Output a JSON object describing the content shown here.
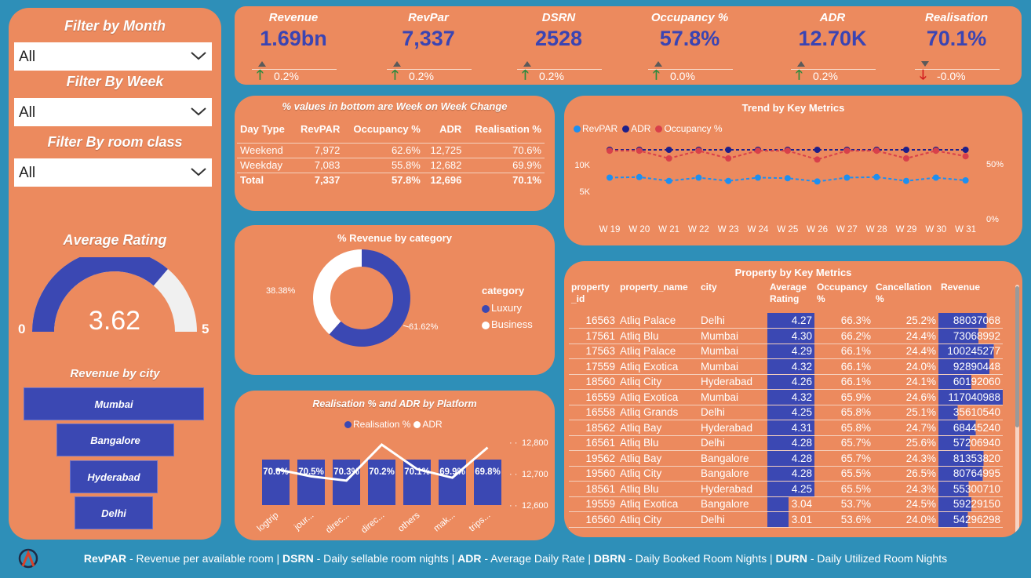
{
  "filters": {
    "month_title": "Filter by Month",
    "month_value": "All",
    "week_title": "Filter By Week",
    "week_value": "All",
    "room_title": "Filter By room class",
    "room_value": "All"
  },
  "rating": {
    "title": "Average Rating",
    "value": "3.62",
    "min": "0",
    "max": "5",
    "fraction": 0.724
  },
  "city": {
    "title": "Revenue by city",
    "items": [
      "Mumbai",
      "Bangalore",
      "Hyderabad",
      "Delhi"
    ]
  },
  "kpis": [
    {
      "title": "Revenue",
      "value": "1.69bn",
      "change": "0.2%",
      "dir": "up"
    },
    {
      "title": "RevPar",
      "value": "7,337",
      "change": "0.2%",
      "dir": "up"
    },
    {
      "title": "DSRN",
      "value": "2528",
      "change": "0.2%",
      "dir": "up"
    },
    {
      "title": "Occupancy %",
      "value": "57.8%",
      "change": "0.0%",
      "dir": "up"
    },
    {
      "title": "ADR",
      "value": "12.70K",
      "change": "0.2%",
      "dir": "up"
    },
    {
      "title": "Realisation",
      "value": "70.1%",
      "change": "-0.0%",
      "dir": "down"
    }
  ],
  "colors": {
    "panel": "#ec8a5e",
    "background": "#2e8fb8",
    "accent": "#3a44b3",
    "up": "#2e8b3e",
    "down": "#d32020"
  },
  "week_table": {
    "title": "% values in bottom are Week on Week Change",
    "headers": [
      "Day Type",
      "RevPAR",
      "Occupancy %",
      "ADR",
      "Realisation %"
    ],
    "rows": [
      [
        "Weekend",
        "7,972",
        "62.6%",
        "12,725",
        "70.6%"
      ],
      [
        "Weekday",
        "7,083",
        "55.8%",
        "12,682",
        "69.9%"
      ],
      [
        "Total",
        "7,337",
        "57.8%",
        "12,696",
        "70.1%"
      ]
    ]
  },
  "chart_data": [
    {
      "type": "pie",
      "title": "% Revenue by category",
      "legend_title": "category",
      "categories": [
        "Luxury",
        "Business"
      ],
      "values": [
        61.62,
        38.38
      ],
      "labels": [
        "61.62%",
        "38.38%"
      ],
      "colors": [
        "#3b48b3",
        "#ffffff"
      ]
    },
    {
      "type": "line",
      "title": "Trend by Key Metrics",
      "categories": [
        "W 19",
        "W 20",
        "W 21",
        "W 22",
        "W 23",
        "W 24",
        "W 25",
        "W 26",
        "W 27",
        "W 28",
        "W 29",
        "W 30",
        "W 31"
      ],
      "series": [
        {
          "name": "RevPAR",
          "axis": "left",
          "color": "#1e8ff0",
          "values": [
            7500,
            7600,
            6900,
            7500,
            6900,
            7500,
            7400,
            6800,
            7500,
            7600,
            6900,
            7500,
            7000
          ]
        },
        {
          "name": "ADR",
          "axis": "left",
          "color": "#1d1f8a",
          "values": [
            12700,
            12700,
            12680,
            12700,
            12680,
            12700,
            12700,
            12680,
            12700,
            12700,
            12680,
            12700,
            12700
          ]
        },
        {
          "name": "Occupancy %",
          "axis": "right",
          "color": "#d8404a",
          "values": [
            62,
            62,
            55,
            62,
            55,
            62,
            62,
            54,
            62,
            62,
            55,
            62,
            57
          ]
        }
      ],
      "y_ticks_left": [
        "10K",
        "5K"
      ],
      "y_ticks_right": [
        "50%",
        "0%"
      ]
    },
    {
      "type": "bar",
      "title": "Realisation % and ADR by Platform",
      "categories": [
        "logtrip",
        "jour...",
        "direc...",
        "direc...",
        "others",
        "mak...",
        "trips..."
      ],
      "series": [
        {
          "name": "Realisation %",
          "type": "bar",
          "color": "#3b48b3",
          "values": [
            70.6,
            70.5,
            70.3,
            70.2,
            70.1,
            69.9,
            69.8
          ],
          "labels": [
            "70.6%",
            "70.5%",
            "70.3%",
            "70.2%",
            "70.1%",
            "69.9%",
            "69.8%"
          ]
        },
        {
          "name": "ADR",
          "type": "line",
          "color": "#ffffff",
          "values": [
            12705,
            12680,
            12665,
            12790,
            12705,
            12675,
            12780
          ]
        }
      ],
      "y_ticks_right": [
        "12,800",
        "12,700",
        "12,600"
      ],
      "ylim_right": [
        12580,
        12820
      ]
    }
  ],
  "property_table": {
    "title": "Property by Key Metrics",
    "headers": [
      "property _id",
      "property_name",
      "city",
      "Average Rating",
      "Occupancy %",
      "Cancellation %",
      "Revenue"
    ],
    "rows": [
      [
        "16563",
        "Atliq Palace",
        "Delhi",
        "4.27",
        "66.3%",
        "25.2%",
        "88037068"
      ],
      [
        "17561",
        "Atliq Blu",
        "Mumbai",
        "4.30",
        "66.2%",
        "24.4%",
        "73068992"
      ],
      [
        "17563",
        "Atliq Palace",
        "Mumbai",
        "4.29",
        "66.1%",
        "24.4%",
        "100245277"
      ],
      [
        "17559",
        "Atliq Exotica",
        "Mumbai",
        "4.32",
        "66.1%",
        "24.0%",
        "92890448"
      ],
      [
        "18560",
        "Atliq City",
        "Hyderabad",
        "4.26",
        "66.1%",
        "24.1%",
        "60192060"
      ],
      [
        "16559",
        "Atliq Exotica",
        "Mumbai",
        "4.32",
        "65.9%",
        "24.6%",
        "117040988"
      ],
      [
        "16558",
        "Atliq Grands",
        "Delhi",
        "4.25",
        "65.8%",
        "25.1%",
        "35610540"
      ],
      [
        "18562",
        "Atliq Bay",
        "Hyderabad",
        "4.31",
        "65.8%",
        "24.7%",
        "68445240"
      ],
      [
        "16561",
        "Atliq Blu",
        "Delhi",
        "4.28",
        "65.7%",
        "25.6%",
        "57206940"
      ],
      [
        "19562",
        "Atliq Bay",
        "Bangalore",
        "4.28",
        "65.7%",
        "24.3%",
        "81353820"
      ],
      [
        "19560",
        "Atliq City",
        "Bangalore",
        "4.28",
        "65.5%",
        "26.5%",
        "80764995"
      ],
      [
        "18561",
        "Atliq Blu",
        "Hyderabad",
        "4.25",
        "65.5%",
        "24.3%",
        "55300710"
      ],
      [
        "19559",
        "Atliq Exotica",
        "Bangalore",
        "3.04",
        "53.7%",
        "24.5%",
        "59229150"
      ],
      [
        "16560",
        "Atliq City",
        "Delhi",
        "3.01",
        "53.6%",
        "24.0%",
        "54296298"
      ]
    ]
  },
  "footer": {
    "parts": [
      {
        "b": "RevPAR",
        "t": " - Revenue per available room | "
      },
      {
        "b": "DSRN",
        "t": " - Daily sellable room nights | "
      },
      {
        "b": "ADR",
        "t": " - Average Daily Rate | "
      },
      {
        "b": "DBRN",
        "t": " - Daily Booked Room Nights | "
      },
      {
        "b": "DURN",
        "t": " - Daily Utilized Room Nights"
      }
    ]
  }
}
